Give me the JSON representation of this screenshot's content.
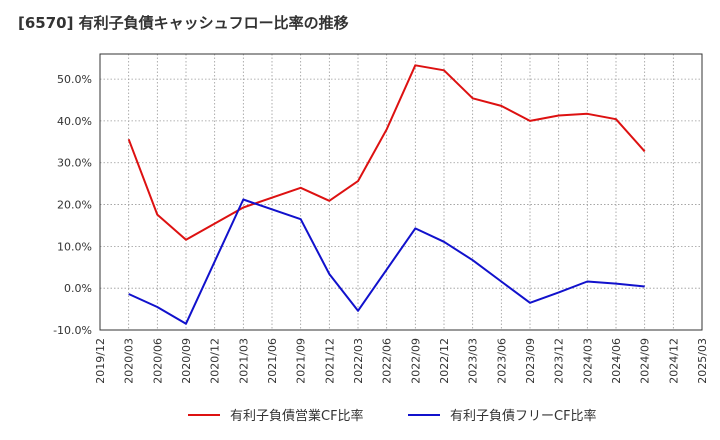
{
  "header": {
    "title": "[6570]  有利子負債キャッシュフロー比率の推移"
  },
  "chart_data": {
    "type": "line",
    "title": "[6570]  有利子負債キャッシュフロー比率の推移",
    "xlabel": "",
    "ylabel": "",
    "ylim": [
      -10,
      56
    ],
    "yticks": [
      "-10.0%",
      "0.0%",
      "10.0%",
      "20.0%",
      "30.0%",
      "40.0%",
      "50.0%"
    ],
    "ytick_values": [
      -10,
      0,
      10,
      20,
      30,
      40,
      50
    ],
    "categories": [
      "2019/12",
      "2020/03",
      "2020/06",
      "2020/09",
      "2020/12",
      "2021/03",
      "2021/06",
      "2021/09",
      "2021/12",
      "2022/03",
      "2022/06",
      "2022/09",
      "2022/12",
      "2023/03",
      "2023/06",
      "2023/09",
      "2023/12",
      "2024/03",
      "2024/06",
      "2024/09",
      "2024/12",
      "2025/03"
    ],
    "grid": true,
    "legend_position": "bottom",
    "series": [
      {
        "name": "有利子負債営業CF比率",
        "color": "#dd1111",
        "values": [
          null,
          35.6,
          17.6,
          11.6,
          null,
          19.3,
          null,
          24.0,
          20.9,
          25.6,
          38.0,
          53.3,
          52.1,
          45.4,
          43.6,
          40.0,
          41.3,
          41.7,
          40.4,
          32.7,
          null,
          null
        ]
      },
      {
        "name": "有利子負債フリーCF比率",
        "color": "#1111cc",
        "values": [
          null,
          -1.4,
          -4.5,
          -8.5,
          null,
          21.2,
          null,
          16.5,
          3.4,
          -5.4,
          null,
          14.3,
          11.1,
          6.7,
          1.6,
          -3.5,
          -1.0,
          1.6,
          1.1,
          0.4,
          null,
          null
        ]
      }
    ]
  }
}
